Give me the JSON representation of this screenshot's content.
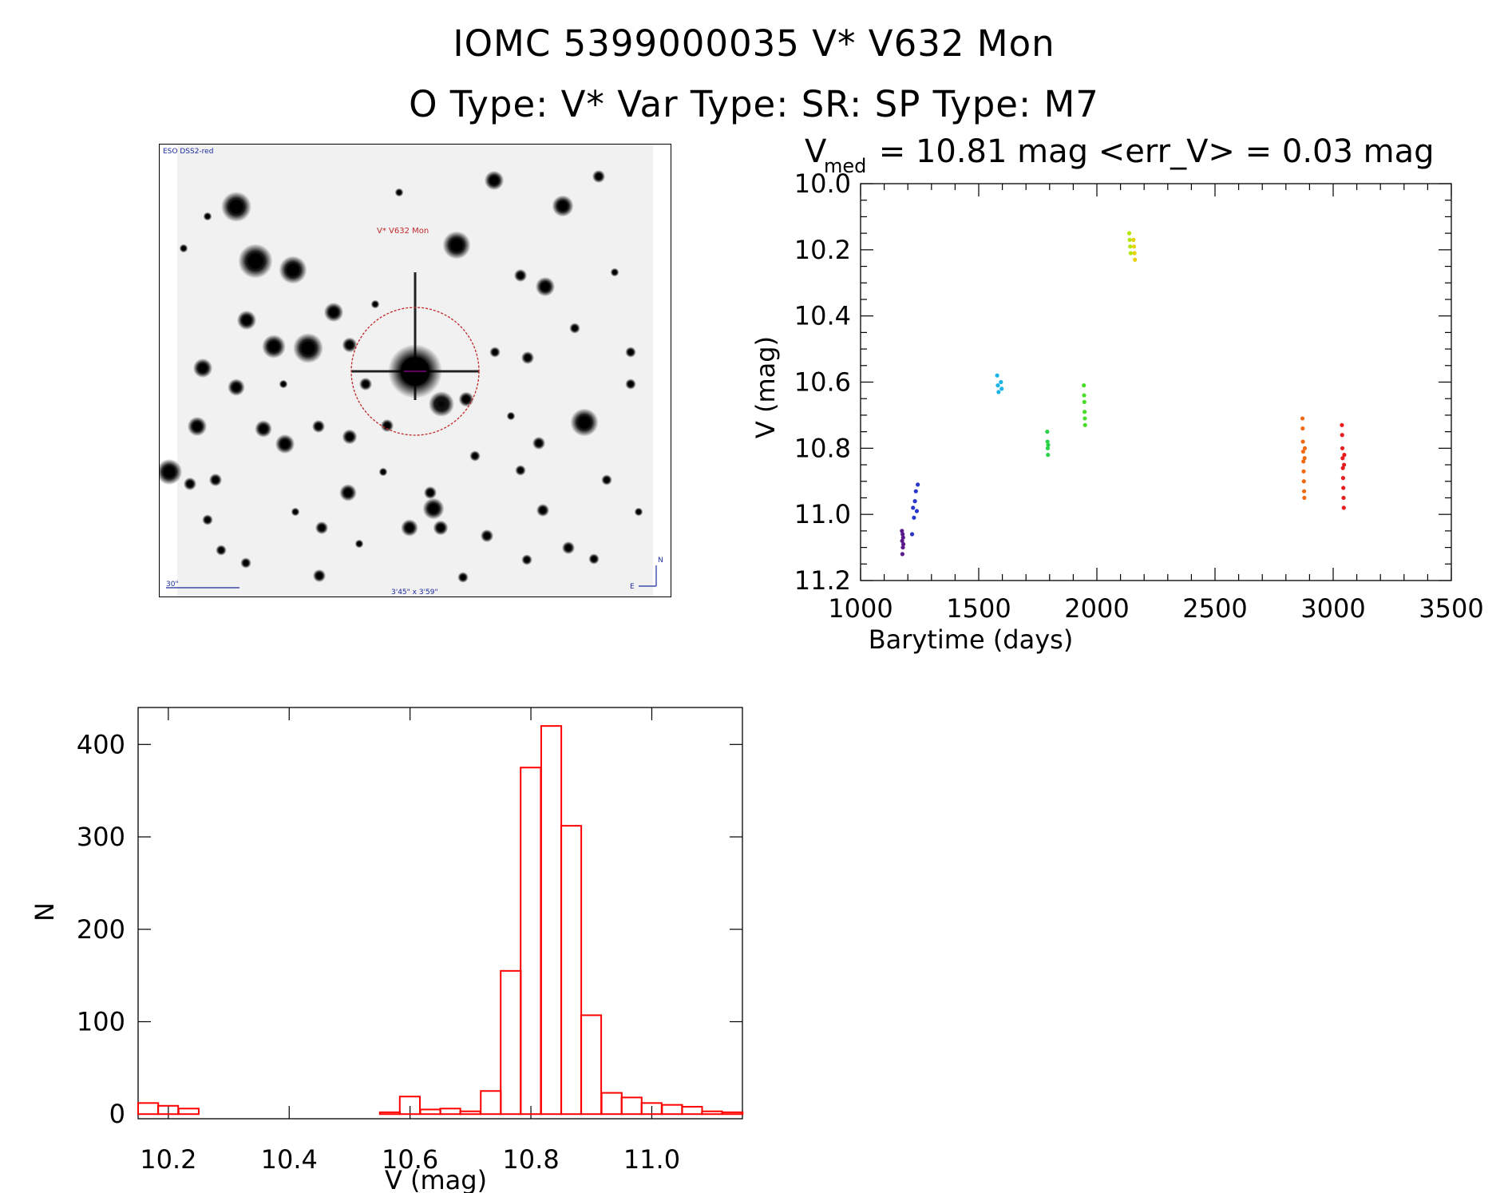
{
  "header": {
    "title_line1": "IOMC 5399000035    V* V632 Mon",
    "title_line2": "O Type: V*  Var Type: SR:  SP Type: M7"
  },
  "finder_chart": {
    "survey_label": "ESO DSS2-red",
    "target_label": "V* V632 Mon",
    "scale_label": "30\"",
    "fov_label": "3'45\" x 3'59\"",
    "compass_n": "N",
    "compass_e": "E",
    "circle_color": "#c0282a"
  },
  "chart_data": [
    {
      "id": "light_curve",
      "type": "scatter",
      "title_prefix": "V",
      "title_subscript": "med",
      "title_rest": " = 10.81 mag <err_V> = 0.03 mag",
      "xlabel": "Barytime (days)",
      "ylabel": "V (mag)",
      "xlim": [
        1000,
        3500
      ],
      "ylim": [
        10.0,
        11.2
      ],
      "y_inverted": true,
      "xticks": [
        1000,
        1500,
        2000,
        2500,
        3000,
        3500
      ],
      "xtick_labels": [
        "1000",
        "1500",
        "2000",
        "2500",
        "3000",
        "3500"
      ],
      "yticks": [
        10.0,
        10.2,
        10.4,
        10.6,
        10.8,
        11.0,
        11.2
      ],
      "ytick_labels": [
        "10.0",
        "10.2",
        "10.4",
        "10.6",
        "10.8",
        "11.0",
        "11.2"
      ],
      "series": [
        {
          "name": "season-1",
          "color": "#5a1a8c",
          "x": [
            1175,
            1176,
            1177,
            1178,
            1179,
            1180,
            1181
          ],
          "y": [
            11.05,
            11.08,
            11.12,
            11.06,
            11.1,
            11.07,
            11.09
          ]
        },
        {
          "name": "season-2",
          "color": "#2a36c8",
          "x": [
            1218,
            1222,
            1226,
            1230,
            1234,
            1238,
            1242
          ],
          "y": [
            11.06,
            10.98,
            11.01,
            10.96,
            10.93,
            10.99,
            10.91
          ]
        },
        {
          "name": "season-3",
          "color": "#1ab4e6",
          "x": [
            1578,
            1581,
            1584,
            1594,
            1597
          ],
          "y": [
            10.58,
            10.61,
            10.63,
            10.6,
            10.62
          ]
        },
        {
          "name": "season-4",
          "color": "#2cd24a",
          "x": [
            1790,
            1791,
            1792,
            1793,
            1794
          ],
          "y": [
            10.75,
            10.78,
            10.8,
            10.82,
            10.79
          ]
        },
        {
          "name": "season-5",
          "color": "#4adc2a",
          "x": [
            1945,
            1946,
            1947,
            1948,
            1949,
            1950
          ],
          "y": [
            10.61,
            10.64,
            10.66,
            10.69,
            10.71,
            10.73
          ]
        },
        {
          "name": "season-6",
          "color": "#b4e60a",
          "x": [
            2137,
            2139,
            2141,
            2143
          ],
          "y": [
            10.15,
            10.17,
            10.19,
            10.21
          ]
        },
        {
          "name": "season-7",
          "color": "#e6d20a",
          "x": [
            2155,
            2157,
            2159,
            2161
          ],
          "y": [
            10.17,
            10.19,
            10.21,
            10.23
          ]
        },
        {
          "name": "season-8",
          "color": "#f06a14",
          "x": [
            2870,
            2871,
            2872,
            2873,
            2874,
            2875,
            2876,
            2877,
            2878,
            2879,
            2880
          ],
          "y": [
            10.71,
            10.74,
            10.78,
            10.81,
            10.84,
            10.87,
            10.9,
            10.93,
            10.95,
            10.83,
            10.8
          ]
        },
        {
          "name": "season-9",
          "color": "#e61e1e",
          "x": [
            3037,
            3038,
            3039,
            3040,
            3041,
            3042,
            3043,
            3044,
            3045,
            3046,
            3047
          ],
          "y": [
            10.73,
            10.76,
            10.8,
            10.83,
            10.86,
            10.89,
            10.92,
            10.95,
            10.98,
            10.85,
            10.82
          ]
        }
      ]
    },
    {
      "id": "histogram",
      "type": "bar",
      "xlabel": "V (mag)",
      "ylabel": "N",
      "xlim": [
        10.15,
        11.15
      ],
      "ylim": [
        -5,
        440
      ],
      "bar_color": "#ff0000",
      "bin_width": 0.0333,
      "bin_starts": [
        10.15,
        10.183,
        10.217,
        10.25,
        10.283,
        10.317,
        10.35,
        10.383,
        10.417,
        10.45,
        10.483,
        10.517,
        10.55,
        10.583,
        10.617,
        10.65,
        10.683,
        10.717,
        10.75,
        10.783,
        10.817,
        10.85,
        10.883,
        10.917,
        10.95,
        10.983,
        11.017,
        11.05,
        11.083,
        11.117
      ],
      "counts": [
        12,
        9,
        6,
        0,
        0,
        0,
        0,
        0,
        0,
        0,
        0,
        0,
        2,
        19,
        5,
        6,
        3,
        25,
        155,
        375,
        420,
        312,
        107,
        23,
        18,
        12,
        10,
        8,
        3,
        2
      ],
      "xticks": [
        10.2,
        10.4,
        10.6,
        10.8,
        11.0
      ],
      "xtick_labels": [
        "10.2",
        "10.4",
        "10.6",
        "10.8",
        "11.0"
      ],
      "yticks": [
        0,
        100,
        200,
        300,
        400
      ],
      "ytick_labels": [
        "0",
        "100",
        "200",
        "300",
        "400"
      ]
    }
  ]
}
